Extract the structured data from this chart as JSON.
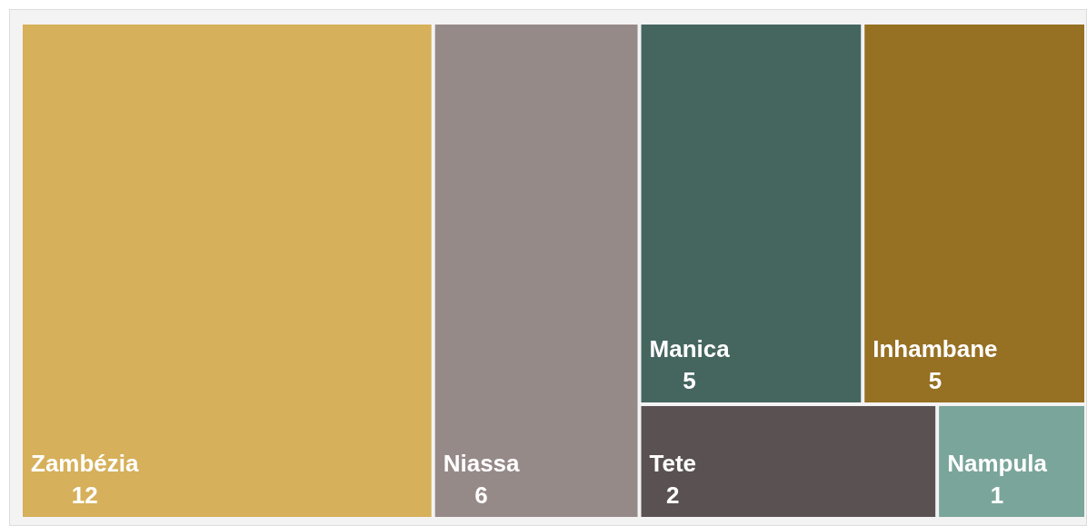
{
  "chart_data": {
    "type": "other",
    "categories": [
      "Zambézia",
      "Niassa",
      "Manica",
      "Inhambane",
      "Tete",
      "Nampula"
    ],
    "values": [
      12,
      6,
      5,
      5,
      2,
      1
    ],
    "colors": [
      "#d6b05a",
      "#968a89",
      "#45665f",
      "#967023",
      "#5a5152",
      "#7aa59a"
    ],
    "data_labels": true
  }
}
